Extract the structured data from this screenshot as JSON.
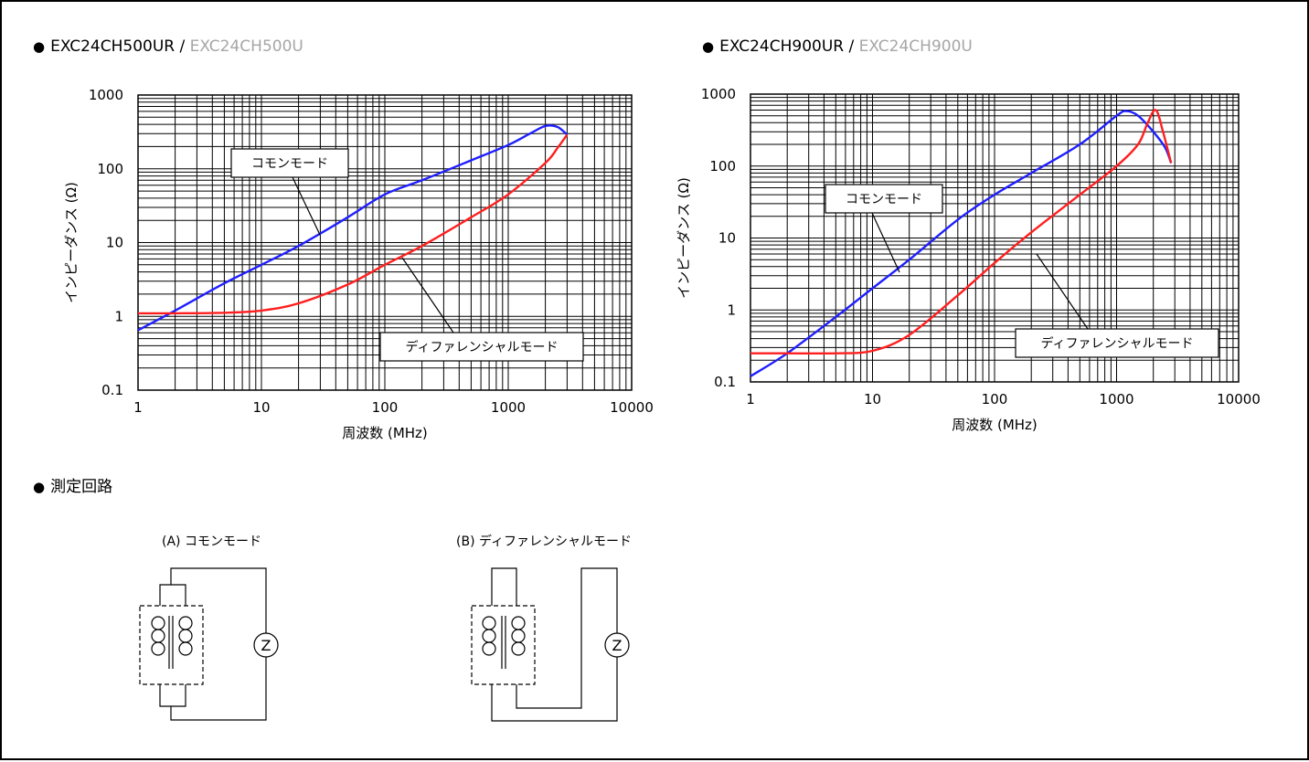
{
  "headings": {
    "chart1": {
      "main": "EXC24CH500UR",
      "sep": " / ",
      "alt": "EXC24CH500U"
    },
    "chart2": {
      "main": "EXC24CH900UR",
      "sep": " / ",
      "alt": "EXC24CH900U"
    },
    "circuit": "測定回路"
  },
  "bullet": "●",
  "colors": {
    "common": "#1f1fff",
    "differential": "#ff1f1f",
    "grid": "#000000",
    "alt_text": "#a6a6a6"
  },
  "chart_data": [
    {
      "type": "line",
      "x_scale": "log",
      "y_scale": "log",
      "xlim": [
        1,
        10000
      ],
      "ylim": [
        0.1,
        1000
      ],
      "xlabel": "周波数 (MHz)",
      "ylabel": "インピーダンス (Ω)",
      "x_ticks": [
        "1",
        "10",
        "100",
        "1000",
        "10000"
      ],
      "y_ticks": [
        "1000",
        "100",
        "10",
        "1",
        "0.1"
      ],
      "grid": true,
      "series": [
        {
          "name": "コモンモード",
          "color": "#1f1fff",
          "x": [
            1,
            2,
            5,
            10,
            20,
            50,
            100,
            200,
            500,
            1000,
            1500,
            2000,
            2500,
            3000
          ],
          "y": [
            0.65,
            1.2,
            2.8,
            5,
            9,
            22,
            45,
            70,
            130,
            210,
            300,
            380,
            370,
            290
          ]
        },
        {
          "name": "ディファレンシャルモード",
          "color": "#ff1f1f",
          "x": [
            1,
            2,
            5,
            10,
            20,
            50,
            100,
            200,
            500,
            1000,
            2000,
            2500,
            3000
          ],
          "y": [
            1.1,
            1.1,
            1.12,
            1.2,
            1.5,
            2.7,
            5,
            9,
            22,
            45,
            120,
            190,
            290
          ]
        }
      ]
    },
    {
      "type": "line",
      "x_scale": "log",
      "y_scale": "log",
      "xlim": [
        1,
        10000
      ],
      "ylim": [
        0.1,
        1000
      ],
      "xlabel": "周波数 (MHz)",
      "ylabel": "インピーダンス (Ω)",
      "x_ticks": [
        "1",
        "10",
        "100",
        "1000",
        "10000"
      ],
      "y_ticks": [
        "1000",
        "100",
        "10",
        "1",
        "0.1"
      ],
      "grid": true,
      "series": [
        {
          "name": "コモンモード",
          "color": "#1f1fff",
          "x": [
            1,
            2,
            5,
            10,
            20,
            50,
            100,
            200,
            500,
            1000,
            1200,
            1500,
            2000,
            2500,
            2800
          ],
          "y": [
            0.12,
            0.25,
            0.8,
            2,
            5,
            18,
            40,
            80,
            200,
            500,
            580,
            500,
            300,
            180,
            110
          ]
        },
        {
          "name": "ディファレンシャルモード",
          "color": "#ff1f1f",
          "x": [
            1,
            2,
            5,
            10,
            20,
            50,
            100,
            200,
            500,
            1000,
            1500,
            1800,
            2100,
            2400,
            2800
          ],
          "y": [
            0.25,
            0.25,
            0.25,
            0.27,
            0.45,
            1.6,
            4.5,
            12,
            40,
            100,
            200,
            400,
            600,
            300,
            110
          ]
        }
      ]
    }
  ],
  "circuits": {
    "a_title": "(A) コモンモード",
    "b_title": "(B) ディファレンシャルモード",
    "meter": "Z"
  }
}
